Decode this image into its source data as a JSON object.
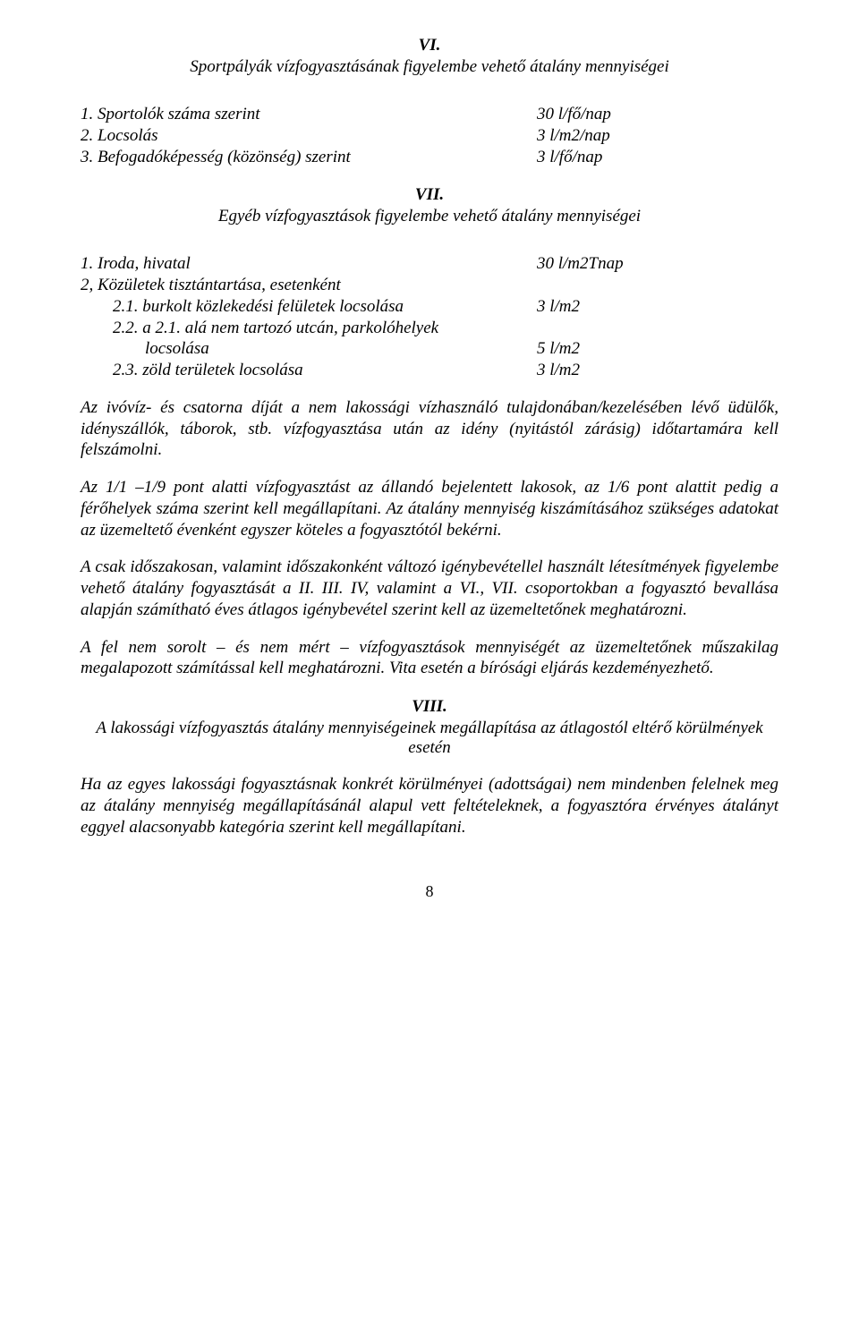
{
  "sectionVI": {
    "num": "VI.",
    "title": "Sportpályák vízfogyasztásának figyelembe vehető átalány mennyiségei",
    "items": [
      {
        "label": "1. Sportolók száma szerint",
        "value": "30 l/fő/nap"
      },
      {
        "label": "2. Locsolás",
        "value": "3 l/m2/nap"
      },
      {
        "label": "3. Befogadóképesség (közönség) szerint",
        "value": "3 l/fő/nap"
      }
    ]
  },
  "sectionVII": {
    "num": "VII.",
    "title": "Egyéb vízfogyasztások figyelembe vehető átalány mennyiségei",
    "items": [
      {
        "label": "1. Iroda, hivatal",
        "value": "30 l/m2Tnap",
        "indent": 0
      },
      {
        "label": "2, Közületek tisztántartása, esetenként",
        "value": "",
        "indent": 0
      },
      {
        "label": "2.1. burkolt közlekedési felületek locsolása",
        "value": "3 l/m2",
        "indent": 1
      },
      {
        "label": "2.2. a 2.1. alá nem tartozó utcán, parkolóhelyek",
        "value": "",
        "indent": 1
      },
      {
        "label": "locsolása",
        "value": "5 l/m2",
        "indent": 2
      },
      {
        "label": "2.3. zöld területek locsolása",
        "value": "3 l/m2",
        "indent": 1
      }
    ]
  },
  "paragraphs": {
    "p1": "Az ivóvíz- és csatorna díját a nem lakossági vízhasználó tulajdonában/kezelésében lévő üdülők, idényszállók, táborok, stb. vízfogyasztása után az idény (nyitástól zárásig) időtartamára kell felszámolni.",
    "p2": "Az 1/1 –1/9 pont alatti vízfogyasztást az állandó bejelentett lakosok, az 1/6 pont alattit pedig a férőhelyek száma szerint kell megállapítani. Az átalány mennyiség kiszámításához szükséges adatokat az üzemeltető évenként egyszer köteles a fogyasztótól bekérni.",
    "p3": "A csak időszakosan, valamint időszakonként változó igénybevétellel használt létesítmények figyelembe vehető átalány fogyasztását a II. III. IV, valamint a VI., VII. csoportokban a fogyasztó bevallása alapján számítható éves átlagos igénybevétel szerint kell az üzemeltetőnek meghatározni.",
    "p4": "A fel nem sorolt – és nem mért – vízfogyasztások mennyiségét az üzemeltetőnek műszakilag megalapozott számítással kell meghatározni. Vita esetén a bírósági eljárás kezdeményezhető."
  },
  "sectionVIII": {
    "num": "VIII.",
    "title": "A lakossági vízfogyasztás átalány mennyiségeinek megállapítása az átlagostól eltérő körülmények esetén",
    "para": "Ha az egyes lakossági fogyasztásnak konkrét körülményei (adottságai) nem mindenben felelnek meg az átalány mennyiség megállapításánál alapul vett feltételeknek, a fogyasztóra érvényes átalányt eggyel alacsonyabb kategória szerint kell megállapítani."
  },
  "pageNumber": "8"
}
